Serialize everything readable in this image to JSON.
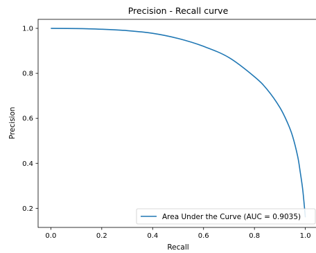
{
  "chart_data": {
    "type": "line",
    "title": "Precision - Recall curve",
    "xlabel": "Recall",
    "ylabel": "Precision",
    "xlim": [
      -0.05,
      1.05
    ],
    "ylim": [
      0.115,
      1.04
    ],
    "xticks": [
      "0.0",
      "0.2",
      "0.4",
      "0.6",
      "0.8",
      "1.0"
    ],
    "yticks": [
      "0.2",
      "0.4",
      "0.6",
      "0.8",
      "1.0"
    ],
    "grid": false,
    "legend_position": "lower-right",
    "series": [
      {
        "name": "Area Under the Curve (AUC = 0.9035)",
        "color": "#1f77b4",
        "x": [
          0.0,
          0.1,
          0.2,
          0.3,
          0.4,
          0.5,
          0.6,
          0.7,
          0.8,
          0.85,
          0.9,
          0.93,
          0.95,
          0.97,
          0.98,
          0.99,
          1.0
        ],
        "y": [
          1.0,
          0.999,
          0.996,
          0.99,
          0.978,
          0.955,
          0.92,
          0.87,
          0.785,
          0.728,
          0.648,
          0.58,
          0.52,
          0.43,
          0.36,
          0.28,
          0.16
        ]
      }
    ]
  }
}
